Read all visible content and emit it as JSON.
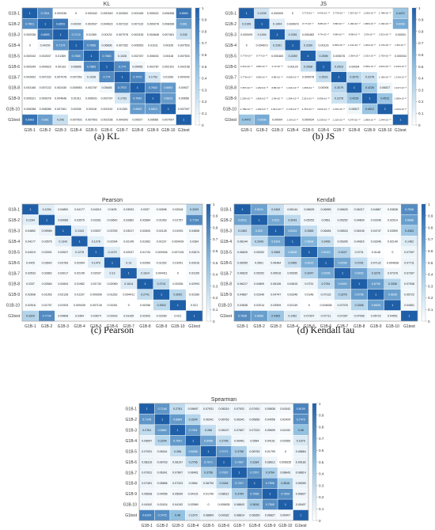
{
  "row_labels": [
    "G1B-1",
    "G1B-2",
    "G1B-3",
    "G1B-4",
    "G1B-5",
    "G1B-6",
    "G1B-7",
    "G1B-8",
    "G1B-9",
    "G1B-10",
    "G1test"
  ],
  "col_labels": [
    "G1B-1",
    "G1B-2",
    "G1B-3",
    "G1B-4",
    "G1B-5",
    "G1B-6",
    "G1B-7",
    "G1B-8",
    "G1B-9",
    "G1B-10",
    "G1test"
  ],
  "colorbar_ticks": [
    "0",
    "0.1",
    "0.2",
    "0.3",
    "0.4",
    "0.5",
    "0.6",
    "0.7",
    "0.8",
    "0.9",
    "1"
  ],
  "colors": {
    "low": "#ffffff",
    "mid": "#8fbfe0",
    "high": "#1f5fa8",
    "text_dark": "#222222",
    "text_light": "#ffffff"
  },
  "chart_data": [
    {
      "type": "heatmap",
      "title": "KL",
      "caption": "(a) KL",
      "values": [
        [
          "1",
          "0.7601",
          "0.000336",
          "0",
          "0.000342",
          "0.000349",
          "0.002602",
          "0.003165",
          "0.005321",
          "0.006358",
          "0.8963"
        ],
        [
          "0.7601",
          "1",
          "0.8653",
          "0.04292",
          "0.002537",
          "0.004623",
          "0.007232",
          "0.007132",
          "0.009278",
          "0.008286",
          "0.661"
        ],
        [
          "0.000336",
          "0.8653",
          "1",
          "0.7174",
          "0.01369",
          "0.00133",
          "0.007078",
          "0.002435",
          "0.004648",
          "0.007461",
          "0.242"
        ],
        [
          "0",
          "0.04292",
          "0.7174",
          "1",
          "0.7665",
          "0.06896",
          "0.007352",
          "0.005953",
          "0.01011",
          "0.00335",
          "0.007503"
        ],
        [
          "0.000342",
          "0.002537",
          "0.01369",
          "0.7665",
          "1",
          "0.7883",
          "0.1028",
          "0.002787",
          "0.006031",
          "0.00418",
          "0.007503"
        ],
        [
          "0.000349",
          "0.004623",
          "0.00133",
          "0.06896",
          "0.7883",
          "1",
          "0.774",
          "0.05465",
          "0.002787",
          "0.002151",
          "0.002158"
        ],
        [
          "0.002602",
          "0.007232",
          "0.007078",
          "0.007352",
          "0.1028",
          "0.774",
          "1",
          "0.7972",
          "0.1793",
          "0.01283",
          "0.004342"
        ],
        [
          "0.003165",
          "0.007132",
          "0.002435",
          "0.005953",
          "0.002787",
          "0.05465",
          "0.7972",
          "1",
          "0.7642",
          "0.6892",
          "0.00927"
        ],
        [
          "0.005321",
          "0.009278",
          "0.004648",
          "0.01011",
          "0.006031",
          "0.002787",
          "0.1793",
          "0.7642",
          "1",
          "0.6813",
          "0.00658"
        ],
        [
          "0.006358",
          "0.008286",
          "0.007461",
          "0.00335",
          "0.00418",
          "0.002151",
          "0.01283",
          "0.6892",
          "0.6813",
          "1",
          "0.007097"
        ],
        [
          "0.8963",
          "0.661",
          "0.242",
          "0.007503",
          "0.007503",
          "0.002158",
          "0.004342",
          "0.00927",
          "0.00658",
          "0.007097",
          "1"
        ]
      ]
    },
    {
      "type": "heatmap",
      "title": "JS",
      "caption": "(b) JS",
      "values": [
        [
          "1",
          "0.2159",
          "0.000009",
          "0",
          "5.773×10⁻⁶",
          "4.441×10⁻¹⁶",
          "5.779×10⁻⁶",
          "7.357×10⁻¹⁶",
          "1.255×10⁻¹⁶",
          "1.789×10⁻¹⁶",
          "0.4472"
        ],
        [
          "0.2159",
          "1",
          "0.1404",
          "0.004673",
          "8.77×10⁻¹⁶",
          "8.88×10⁻¹⁶",
          "8.88×10⁻¹⁶",
          "1.182×10⁻¹⁵",
          "1.866×10⁻¹⁶",
          "1.182×10⁻¹⁵",
          "0.6098"
        ],
        [
          "0.000009",
          "0.1404",
          "1",
          "0.2281",
          "0.000483",
          "4.74×10⁻¹⁶",
          "8.88×10⁻¹⁶",
          "8.88×10⁻¹⁶",
          "2.09×10⁻¹⁶",
          "1.821×10⁻¹⁵",
          "0.00004"
        ],
        [
          "0",
          "0.004673",
          "0.2281",
          "1",
          "0.2269",
          "0.00129",
          "9.659×10⁻¹⁶",
          "1.241×10⁻¹⁵",
          "1.304×10⁻¹⁵",
          "2.176×10⁻¹⁶",
          "1.69×10⁻¹⁵"
        ],
        [
          "5.773×10⁻⁶",
          "8.77×10⁻¹⁶",
          "0.000483",
          "0.2269",
          "1",
          "0.2598",
          "0.005078",
          "1.356×10⁻⁶",
          "2.021×10⁻¹⁶",
          "2.753×10⁻¹⁶",
          "0.000034"
        ],
        [
          "4.441×10⁻¹⁶",
          "8.88×10⁻¹⁶",
          "4.74×10⁻¹⁶",
          "0.00129",
          "0.2598",
          "1",
          "0.2523",
          "0.00094",
          "6.656×10⁻¹⁶",
          "2.831×10⁻¹⁶",
          "6.233×10⁻¹⁶"
        ],
        [
          "5.779×10⁻⁶",
          "8.88×10⁻¹⁶",
          "8.88×10⁻¹⁶",
          "9.659×10⁻¹⁶",
          "0.005078",
          "0.2523",
          "1",
          "0.3079",
          "0.2278",
          "1.155×10⁻¹⁵",
          "1.216×10⁻¹⁶"
        ],
        [
          "7.357×10⁻¹⁶",
          "1.182×10⁻¹⁵",
          "8.88×10⁻¹⁶",
          "1.241×10⁻¹⁵",
          "1.356×10⁻⁶",
          "0.00094",
          "0.3079",
          "1",
          "0.4226",
          "0.06527",
          "4.247×10⁻¹⁶"
        ],
        [
          "1.255×10⁻¹⁶",
          "1.866×10⁻¹⁶",
          "2.09×10⁻¹⁶",
          "1.304×10⁻¹⁵",
          "2.021×10⁻¹⁶",
          "6.656×10⁻¹⁶",
          "0.2278",
          "0.4226",
          "1",
          "0.4512",
          "1.086×10⁻¹⁶"
        ],
        [
          "1.789×10⁻¹⁶",
          "1.182×10⁻¹⁵",
          "1.821×10⁻¹⁵",
          "2.176×10⁻¹⁶",
          "2.753×10⁻¹⁶",
          "2.831×10⁻¹⁶",
          "1.155×10⁻¹⁵",
          "0.06527",
          "0.4512",
          "1",
          "1.044×10⁻¹⁶"
        ],
        [
          "0.4472",
          "0.6098",
          "0.00004",
          "1.69×10⁻¹⁵",
          "0.000034",
          "6.233×10⁻¹⁶",
          "1.216×10⁻¹⁶",
          "4.247×10⁻¹⁶",
          "1.086×10⁻¹⁶",
          "1.044×10⁻¹⁶",
          "1"
        ]
      ]
    },
    {
      "type": "heatmap",
      "title": "Pearson",
      "caption": "(c) Pearson",
      "values": [
        [
          "1",
          "0.1294",
          "0.04852",
          "0.04177",
          "0.04019",
          "0.0425",
          "0.03533",
          "0.0337",
          "0.02698",
          "0.02518",
          "0.3329"
        ],
        [
          "0.1294",
          "1",
          "0.09089",
          "0.03575",
          "0.03391",
          "0.03642",
          "0.02862",
          "0.02684",
          "0.01953",
          "0.01757",
          "0.7734"
        ],
        [
          "0.04852",
          "0.09089",
          "1",
          "0.1343",
          "0.03537",
          "0.03783",
          "0.03017",
          "0.02843",
          "0.02128",
          "0.01933",
          "0.04808"
        ],
        [
          "0.04177",
          "0.03575",
          "0.1343",
          "1",
          "0.1278",
          "0.02994",
          "0.02145",
          "0.01962",
          "0.01157",
          "0.009439",
          "0.0364"
        ],
        [
          "0.04019",
          "0.03391",
          "0.03537",
          "0.1278",
          "1",
          "0.1479",
          "0.02037",
          "0.01743",
          "0.009306",
          "0.007126",
          "0.03674"
        ],
        [
          "0.0425",
          "0.03642",
          "0.03783",
          "0.02994",
          "0.1479",
          "1",
          "0.13",
          "0.02069",
          "0.01262",
          "0.01051",
          "0.03916"
        ],
        [
          "0.03533",
          "0.02862",
          "0.03017",
          "0.02145",
          "0.02037",
          "0.13",
          "1",
          "0.1614",
          "0.004411",
          "0",
          "0.03165"
        ],
        [
          "0.0337",
          "0.02684",
          "0.02843",
          "0.01962",
          "0.01743",
          "0.02069",
          "0.1614",
          "1",
          "0.2741",
          "0.00256",
          "0.02993"
        ],
        [
          "0.02698",
          "0.01953",
          "0.02128",
          "0.01157",
          "0.009306",
          "0.01262",
          "0.004411",
          "0.2741",
          "1",
          "0.3002",
          "0.02289"
        ],
        [
          "0.02518",
          "0.01757",
          "0.01933",
          "0.009439",
          "0.007126",
          "0.01051",
          "0",
          "0.00256",
          "0.3002",
          "1",
          "0.021"
        ],
        [
          "0.3329",
          "0.7734",
          "0.04808",
          "0.0364",
          "0.03674",
          "0.03916",
          "0.03165",
          "0.02993",
          "0.02289",
          "0.021",
          "1"
        ]
      ]
    },
    {
      "type": "heatmap",
      "title": "Kendall",
      "caption": "(d) Kendall tau",
      "values": [
        [
          "1",
          "0.6511",
          "0.2463",
          "0.08144",
          "0.06625",
          "0.06955",
          "0.06625",
          "0.06217",
          "0.04867",
          "0.03638",
          "0.7638"
        ],
        [
          "0.6511",
          "1",
          "0.622",
          "0.2943",
          "0.05252",
          "0.0561",
          "0.05252",
          "0.04809",
          "0.03346",
          "0.02014",
          "0.6686"
        ],
        [
          "0.2463",
          "0.622",
          "1",
          "0.6334",
          "0.2565",
          "0.06484",
          "0.06516",
          "0.06106",
          "0.04747",
          "0.03509",
          "0.4363"
        ],
        [
          "0.08144",
          "0.2943",
          "0.6334",
          "1",
          "0.5608",
          "0.2465",
          "0.05395",
          "0.04815",
          "0.03346",
          "0.02149",
          "0.1462"
        ],
        [
          "0.06625",
          "0.05252",
          "0.2565",
          "0.5608",
          "1",
          "0.6015",
          "0.3247",
          "0.0731",
          "0.0148",
          "0",
          "0.07397"
        ],
        [
          "0.06955",
          "0.0561",
          "0.06484",
          "0.2465",
          "0.6015",
          "1",
          "0.6296",
          "0.2781",
          "0.07132",
          "0.004638",
          "0.07711"
        ],
        [
          "0.06625",
          "0.05252",
          "0.06516",
          "0.05395",
          "0.3247",
          "0.6296",
          "1",
          "0.6492",
          "0.3276",
          "0.07378",
          "0.07397"
        ],
        [
          "0.06217",
          "0.04809",
          "0.06106",
          "0.04815",
          "0.0731",
          "0.2781",
          "0.6492",
          "1",
          "0.6796",
          "0.3306",
          "0.07008"
        ],
        [
          "0.04867",
          "0.03346",
          "0.04747",
          "0.03346",
          "0.0148",
          "0.07132",
          "0.3276",
          "0.6796",
          "1",
          "0.6635",
          "0.05722"
        ],
        [
          "0.03638",
          "0.02014",
          "0.03509",
          "0.02149",
          "0",
          "0.004638",
          "0.07378",
          "0.3306",
          "0.6635",
          "1",
          "0.04551"
        ],
        [
          "0.7638",
          "0.6686",
          "0.4363",
          "0.1462",
          "0.07397",
          "0.07711",
          "0.07397",
          "0.07008",
          "0.05722",
          "0.04551",
          "1"
        ]
      ]
    },
    {
      "type": "heatmap",
      "title": "Spearman",
      "caption": "",
      "values": [
        [
          "1",
          "0.7146",
          "0.2761",
          "0.09697",
          "0.07931",
          "0.08319",
          "0.07931",
          "0.07451",
          "0.05838",
          "0.04342",
          "0.8109"
        ],
        [
          "0.7146",
          "1",
          "0.6884",
          "0.3294",
          "0.06341",
          "0.06763",
          "0.06341",
          "0.05856",
          "0.04056",
          "0.02424",
          "0.7475"
        ],
        [
          "0.2761",
          "0.6884",
          "1",
          "0.7001",
          "0.266",
          "0.08197",
          "0.07807",
          "0.07323",
          "0.05699",
          "0.04192",
          "0.48"
        ],
        [
          "0.09697",
          "0.3294",
          "0.7001",
          "1",
          "0.6458",
          "0.2796",
          "0.06461",
          "0.0584",
          "0.04191",
          "0.02569",
          "0.1679"
        ],
        [
          "0.07931",
          "0.06341",
          "0.266",
          "0.6458",
          "1",
          "0.7071",
          "0.3756",
          "0.08753",
          "0.01799",
          "0",
          "0.08864"
        ],
        [
          "0.08319",
          "0.06763",
          "0.08197",
          "0.2796",
          "0.7071",
          "1",
          "0.7067",
          "0.3184",
          "0.08612",
          "0.005635",
          "0.09182"
        ],
        [
          "0.07931",
          "0.06341",
          "0.07807",
          "0.06461",
          "0.3756",
          "0.7067",
          "1",
          "0.7207",
          "0.3764",
          "0.08843",
          "0.08814"
        ],
        [
          "0.07451",
          "0.05856",
          "0.07323",
          "0.0584",
          "0.08753",
          "0.3184",
          "0.7207",
          "1",
          "0.7596",
          "0.3818",
          "0.08359"
        ],
        [
          "0.05838",
          "0.04056",
          "0.05699",
          "0.04191",
          "0.01799",
          "0.08612",
          "0.3764",
          "0.7596",
          "1",
          "0.7509",
          "0.06827"
        ],
        [
          "0.04342",
          "0.02424",
          "0.04192",
          "0.02569",
          "0",
          "0.005635",
          "0.08843",
          "0.3818",
          "0.7509",
          "1",
          "0.05407"
        ],
        [
          "0.8109",
          "0.7475",
          "0.48",
          "0.1679",
          "0.08864",
          "0.09182",
          "0.08814",
          "0.08359",
          "0.06827",
          "0.05407",
          "1"
        ]
      ]
    }
  ]
}
